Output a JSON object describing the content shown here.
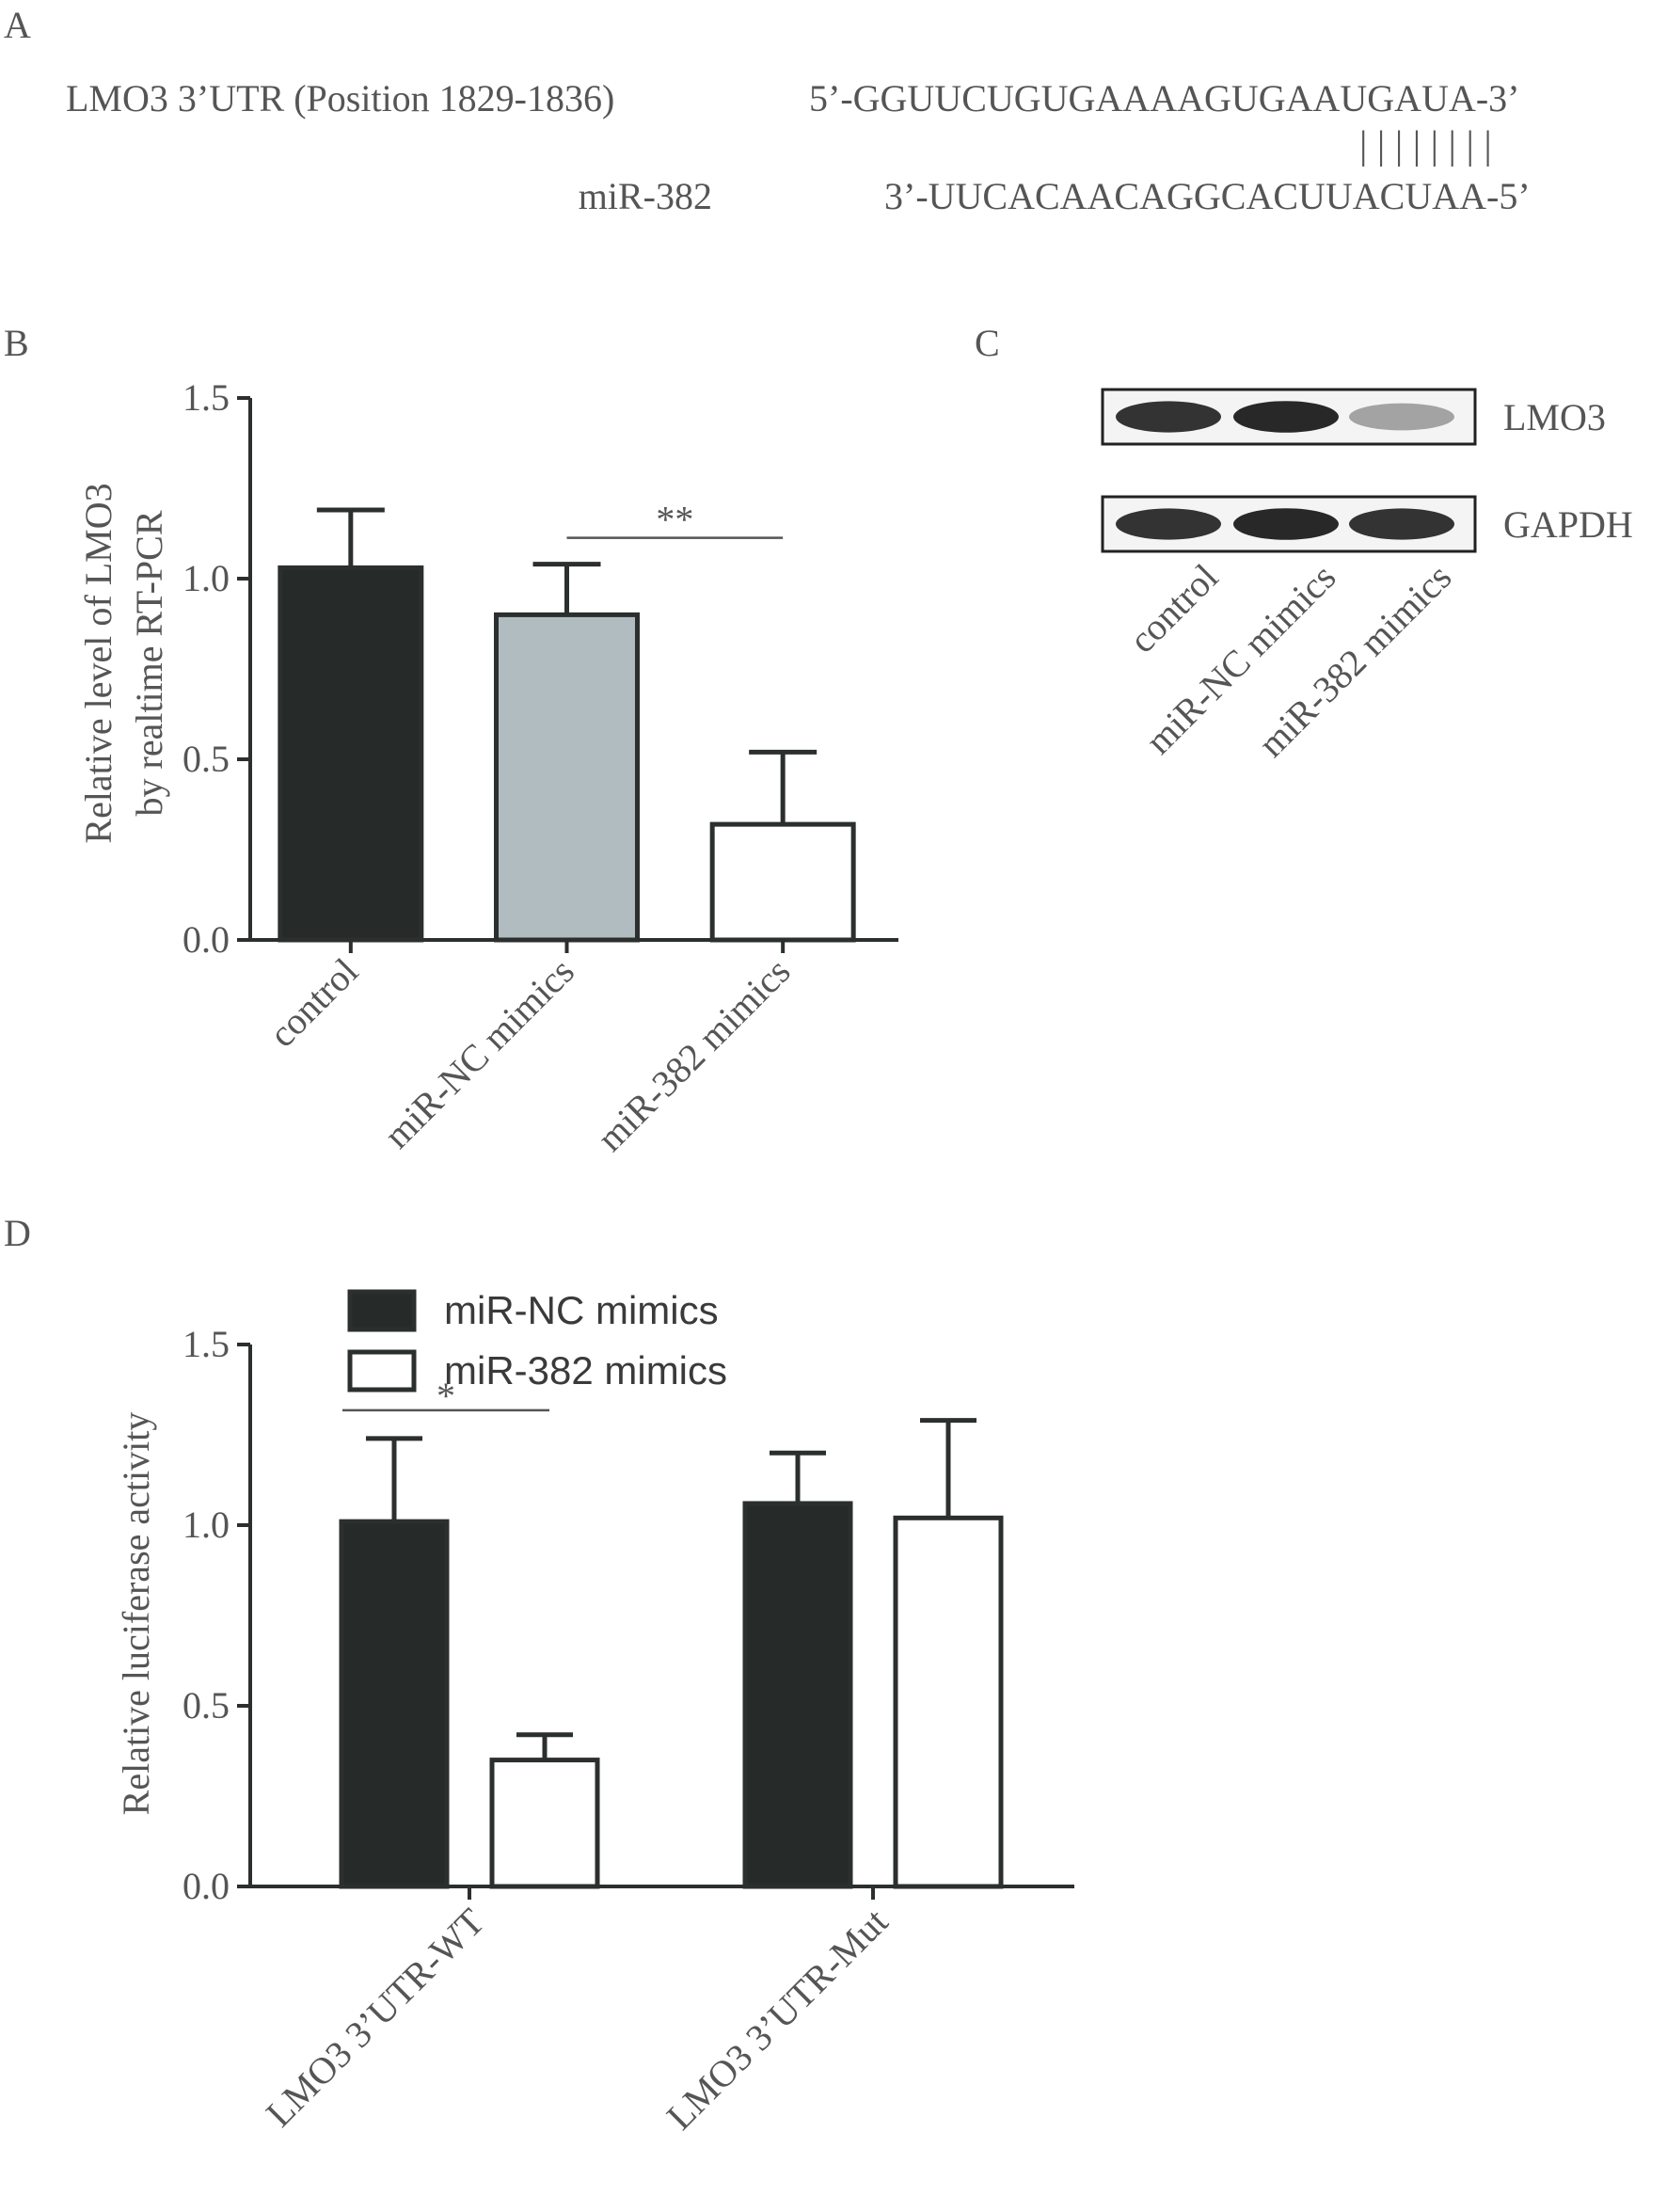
{
  "panel_labels": {
    "a": "A",
    "b": "B",
    "c": "C",
    "d": "D"
  },
  "panel_a": {
    "utr_label": "LMO3 3’UTR (Position 1829-1836)",
    "utr_seq": "5’-GGUUCUGUGAAAAGUGAAUGAUA-3’",
    "pairing": "| | | | | | | |",
    "mirna_label": "miR-382",
    "mirna_seq": "3’-UUCACAACAGGCACUUACUAA-5’"
  },
  "panel_c": {
    "bands": [
      {
        "name": "LMO3",
        "intensity": [
          0.9,
          0.95,
          0.35
        ]
      },
      {
        "name": "GAPDH",
        "intensity": [
          0.9,
          0.95,
          0.9
        ]
      }
    ],
    "lanes": [
      "control",
      "miR-NC mimics",
      "miR-382 mimics"
    ]
  },
  "colors": {
    "dark": "#262b2a",
    "gray": "#b0bcc0",
    "white": "#ffffff",
    "outline": "#2b2f2e"
  },
  "chart_data": [
    {
      "panel": "B",
      "type": "bar",
      "categories": [
        "control",
        "miR-NC mimics",
        "miR-382 mimics"
      ],
      "values": [
        1.03,
        0.9,
        0.32
      ],
      "errors": [
        0.16,
        0.14,
        0.2
      ],
      "bar_colors": [
        "#262b2a",
        "#b0bcc0",
        "#ffffff"
      ],
      "ylabel_line1": "Relative level of LMO3",
      "ylabel_line2": "by realtime RT-PCR",
      "ylim": [
        0,
        1.5
      ],
      "yticks": [
        "0.0",
        "0.5",
        "1.0",
        "1.5"
      ],
      "significance": {
        "from": 1,
        "to": 2,
        "label": "**"
      }
    },
    {
      "panel": "D",
      "type": "bar",
      "categories": [
        "LMO3 3’UTR-WT",
        "LMO3 3’UTR-Mut"
      ],
      "series": [
        {
          "name": "miR-NC mimics",
          "values": [
            1.01,
            1.06
          ],
          "errors": [
            0.23,
            0.14
          ],
          "color": "#262b2a"
        },
        {
          "name": "miR-382 mimics",
          "values": [
            0.35,
            1.02
          ],
          "errors": [
            0.07,
            0.27
          ],
          "color": "#ffffff"
        }
      ],
      "ylabel": "Relative luciferase activity",
      "ylim": [
        0,
        1.5
      ],
      "yticks": [
        "0.0",
        "0.5",
        "1.0",
        "1.5"
      ],
      "legend_position": "top-left",
      "significance": {
        "category": 0,
        "label": "*"
      }
    }
  ]
}
